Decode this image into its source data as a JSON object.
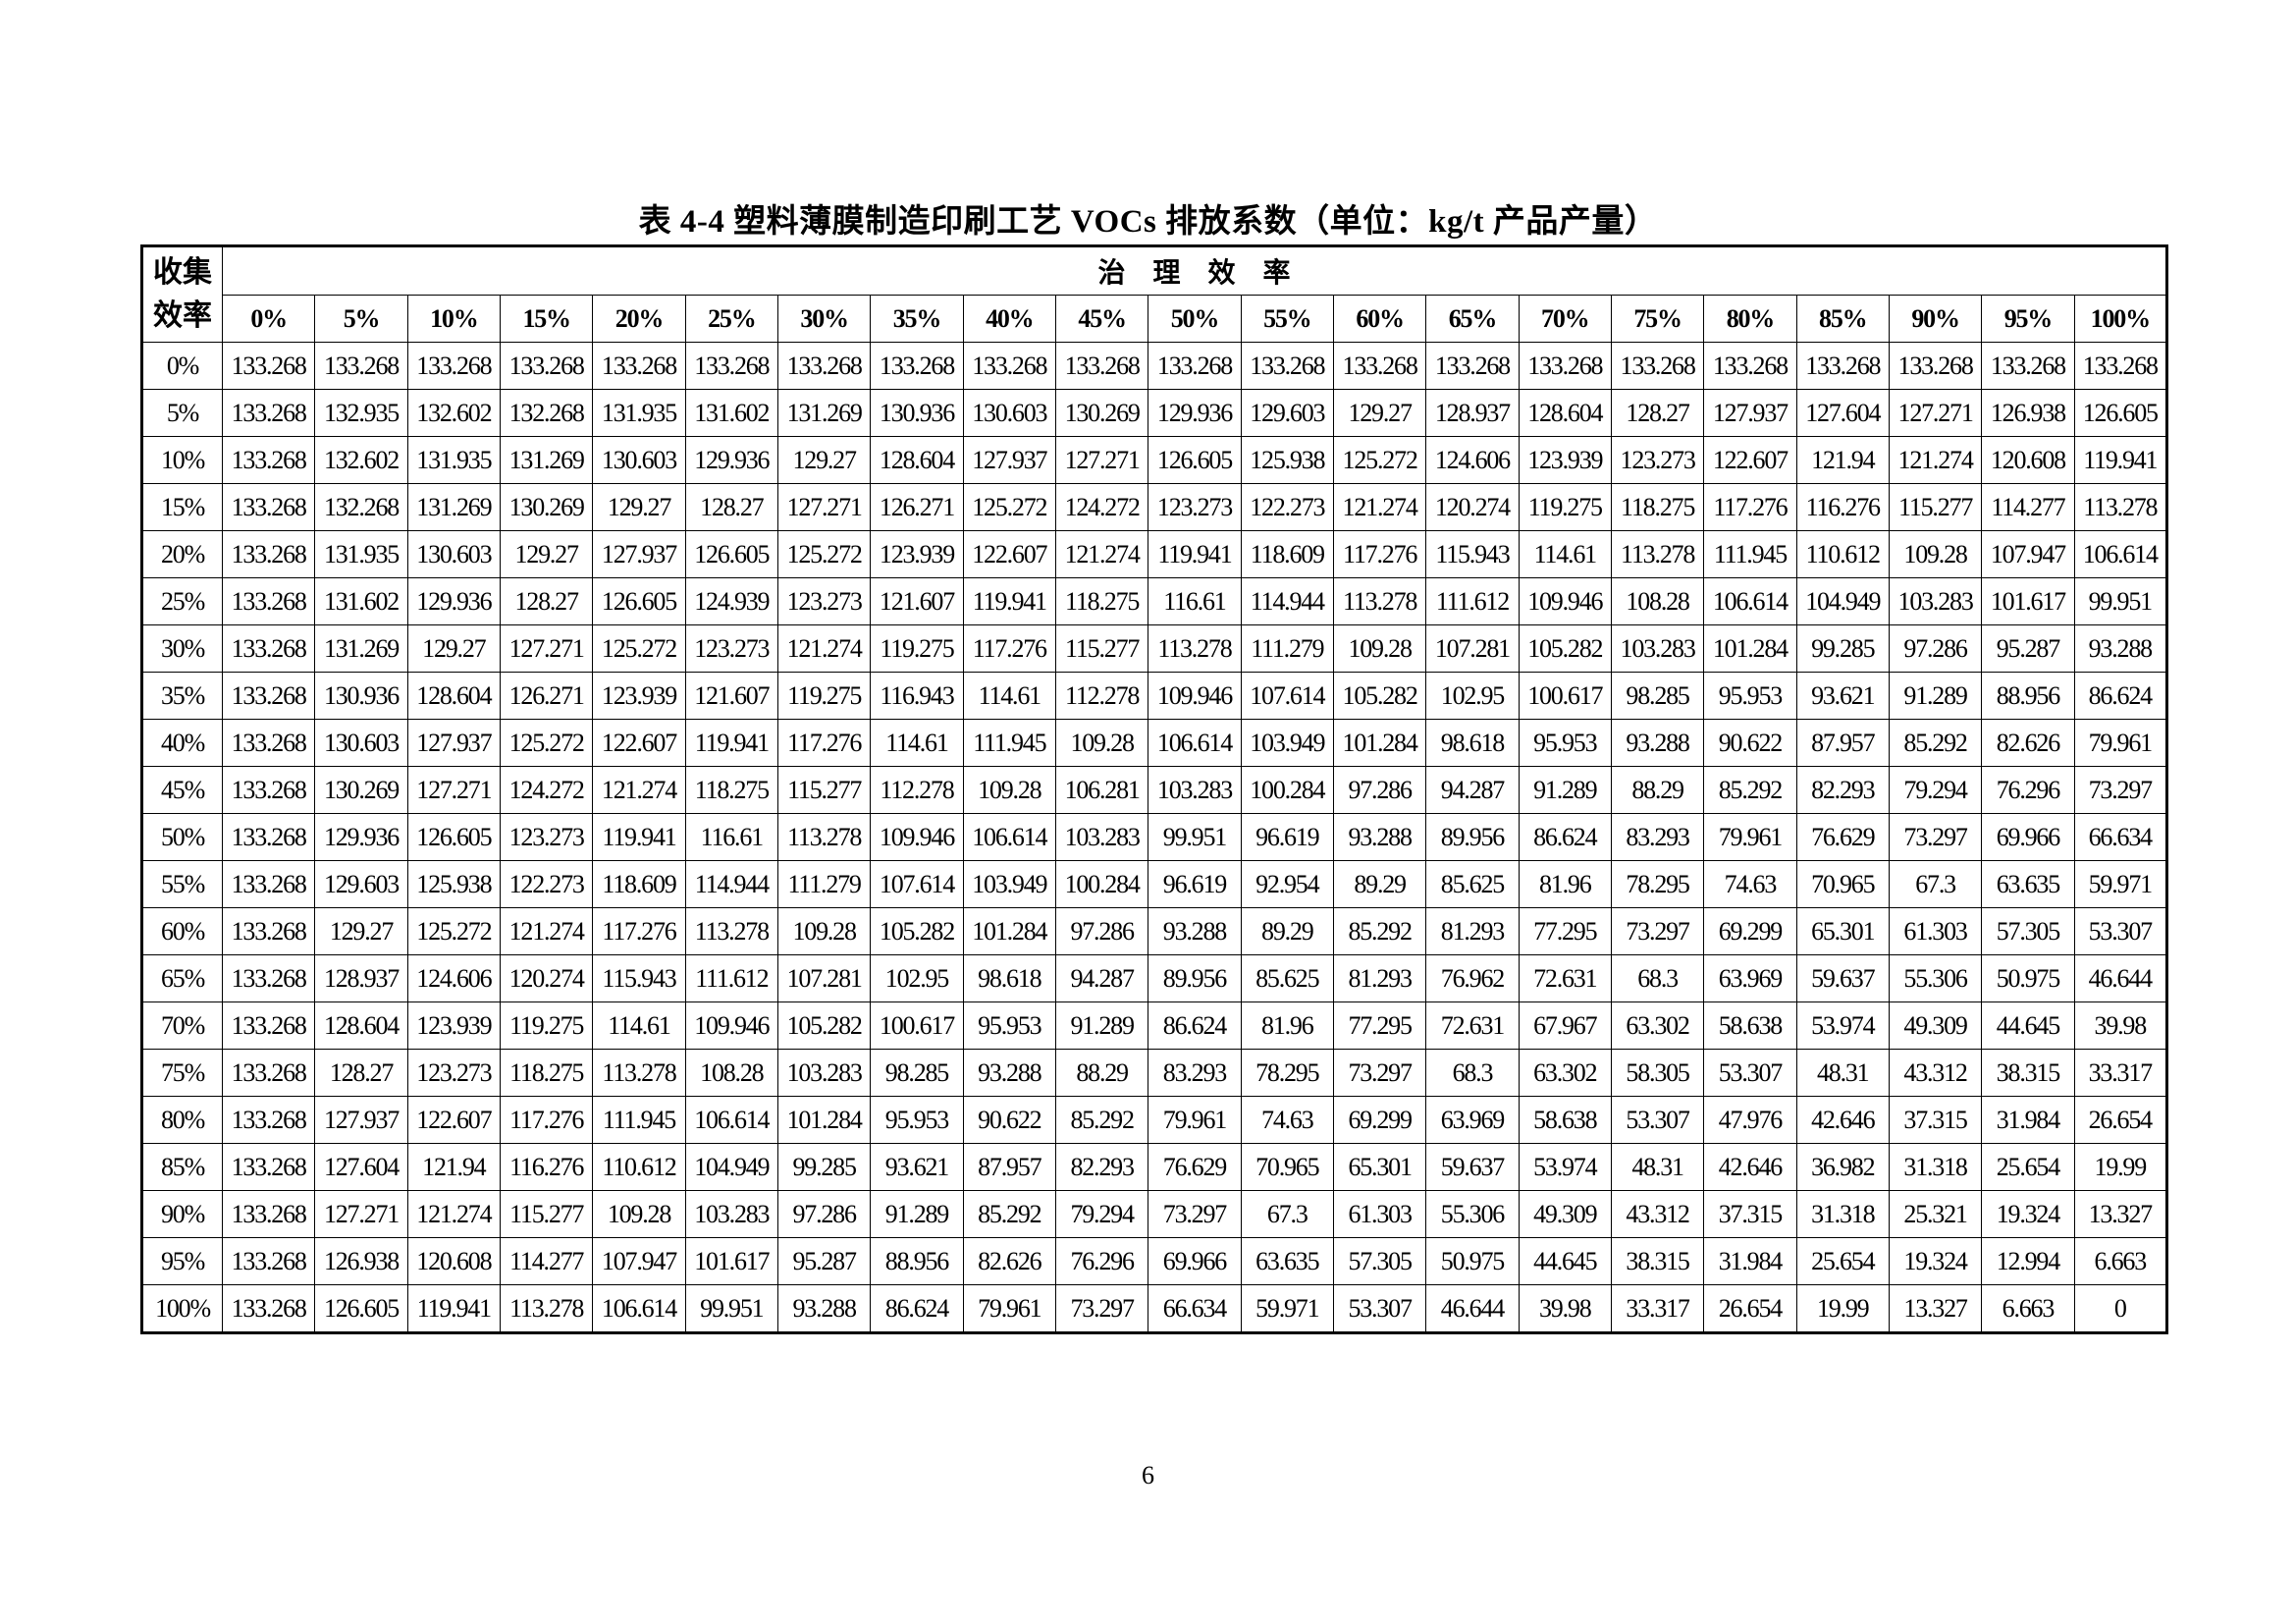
{
  "title": "表 4-4  塑料薄膜制造印刷工艺 VOCs 排放系数（单位：kg/t 产品产量）",
  "table": {
    "row_header": "收集\n效率",
    "column_group_header": "治    理    效    率",
    "columns": [
      "0%",
      "5%",
      "10%",
      "15%",
      "20%",
      "25%",
      "30%",
      "35%",
      "40%",
      "45%",
      "50%",
      "55%",
      "60%",
      "65%",
      "70%",
      "75%",
      "80%",
      "85%",
      "90%",
      "95%",
      "100%"
    ],
    "rows": [
      {
        "label": "0%",
        "values": [
          "133.268",
          "133.268",
          "133.268",
          "133.268",
          "133.268",
          "133.268",
          "133.268",
          "133.268",
          "133.268",
          "133.268",
          "133.268",
          "133.268",
          "133.268",
          "133.268",
          "133.268",
          "133.268",
          "133.268",
          "133.268",
          "133.268",
          "133.268",
          "133.268"
        ]
      },
      {
        "label": "5%",
        "values": [
          "133.268",
          "132.935",
          "132.602",
          "132.268",
          "131.935",
          "131.602",
          "131.269",
          "130.936",
          "130.603",
          "130.269",
          "129.936",
          "129.603",
          "129.27",
          "128.937",
          "128.604",
          "128.27",
          "127.937",
          "127.604",
          "127.271",
          "126.938",
          "126.605"
        ]
      },
      {
        "label": "10%",
        "values": [
          "133.268",
          "132.602",
          "131.935",
          "131.269",
          "130.603",
          "129.936",
          "129.27",
          "128.604",
          "127.937",
          "127.271",
          "126.605",
          "125.938",
          "125.272",
          "124.606",
          "123.939",
          "123.273",
          "122.607",
          "121.94",
          "121.274",
          "120.608",
          "119.941"
        ]
      },
      {
        "label": "15%",
        "values": [
          "133.268",
          "132.268",
          "131.269",
          "130.269",
          "129.27",
          "128.27",
          "127.271",
          "126.271",
          "125.272",
          "124.272",
          "123.273",
          "122.273",
          "121.274",
          "120.274",
          "119.275",
          "118.275",
          "117.276",
          "116.276",
          "115.277",
          "114.277",
          "113.278"
        ]
      },
      {
        "label": "20%",
        "values": [
          "133.268",
          "131.935",
          "130.603",
          "129.27",
          "127.937",
          "126.605",
          "125.272",
          "123.939",
          "122.607",
          "121.274",
          "119.941",
          "118.609",
          "117.276",
          "115.943",
          "114.61",
          "113.278",
          "111.945",
          "110.612",
          "109.28",
          "107.947",
          "106.614"
        ]
      },
      {
        "label": "25%",
        "values": [
          "133.268",
          "131.602",
          "129.936",
          "128.27",
          "126.605",
          "124.939",
          "123.273",
          "121.607",
          "119.941",
          "118.275",
          "116.61",
          "114.944",
          "113.278",
          "111.612",
          "109.946",
          "108.28",
          "106.614",
          "104.949",
          "103.283",
          "101.617",
          "99.951"
        ]
      },
      {
        "label": "30%",
        "values": [
          "133.268",
          "131.269",
          "129.27",
          "127.271",
          "125.272",
          "123.273",
          "121.274",
          "119.275",
          "117.276",
          "115.277",
          "113.278",
          "111.279",
          "109.28",
          "107.281",
          "105.282",
          "103.283",
          "101.284",
          "99.285",
          "97.286",
          "95.287",
          "93.288"
        ]
      },
      {
        "label": "35%",
        "values": [
          "133.268",
          "130.936",
          "128.604",
          "126.271",
          "123.939",
          "121.607",
          "119.275",
          "116.943",
          "114.61",
          "112.278",
          "109.946",
          "107.614",
          "105.282",
          "102.95",
          "100.617",
          "98.285",
          "95.953",
          "93.621",
          "91.289",
          "88.956",
          "86.624"
        ]
      },
      {
        "label": "40%",
        "values": [
          "133.268",
          "130.603",
          "127.937",
          "125.272",
          "122.607",
          "119.941",
          "117.276",
          "114.61",
          "111.945",
          "109.28",
          "106.614",
          "103.949",
          "101.284",
          "98.618",
          "95.953",
          "93.288",
          "90.622",
          "87.957",
          "85.292",
          "82.626",
          "79.961"
        ]
      },
      {
        "label": "45%",
        "values": [
          "133.268",
          "130.269",
          "127.271",
          "124.272",
          "121.274",
          "118.275",
          "115.277",
          "112.278",
          "109.28",
          "106.281",
          "103.283",
          "100.284",
          "97.286",
          "94.287",
          "91.289",
          "88.29",
          "85.292",
          "82.293",
          "79.294",
          "76.296",
          "73.297"
        ]
      },
      {
        "label": "50%",
        "values": [
          "133.268",
          "129.936",
          "126.605",
          "123.273",
          "119.941",
          "116.61",
          "113.278",
          "109.946",
          "106.614",
          "103.283",
          "99.951",
          "96.619",
          "93.288",
          "89.956",
          "86.624",
          "83.293",
          "79.961",
          "76.629",
          "73.297",
          "69.966",
          "66.634"
        ]
      },
      {
        "label": "55%",
        "values": [
          "133.268",
          "129.603",
          "125.938",
          "122.273",
          "118.609",
          "114.944",
          "111.279",
          "107.614",
          "103.949",
          "100.284",
          "96.619",
          "92.954",
          "89.29",
          "85.625",
          "81.96",
          "78.295",
          "74.63",
          "70.965",
          "67.3",
          "63.635",
          "59.971"
        ]
      },
      {
        "label": "60%",
        "values": [
          "133.268",
          "129.27",
          "125.272",
          "121.274",
          "117.276",
          "113.278",
          "109.28",
          "105.282",
          "101.284",
          "97.286",
          "93.288",
          "89.29",
          "85.292",
          "81.293",
          "77.295",
          "73.297",
          "69.299",
          "65.301",
          "61.303",
          "57.305",
          "53.307"
        ]
      },
      {
        "label": "65%",
        "values": [
          "133.268",
          "128.937",
          "124.606",
          "120.274",
          "115.943",
          "111.612",
          "107.281",
          "102.95",
          "98.618",
          "94.287",
          "89.956",
          "85.625",
          "81.293",
          "76.962",
          "72.631",
          "68.3",
          "63.969",
          "59.637",
          "55.306",
          "50.975",
          "46.644"
        ]
      },
      {
        "label": "70%",
        "values": [
          "133.268",
          "128.604",
          "123.939",
          "119.275",
          "114.61",
          "109.946",
          "105.282",
          "100.617",
          "95.953",
          "91.289",
          "86.624",
          "81.96",
          "77.295",
          "72.631",
          "67.967",
          "63.302",
          "58.638",
          "53.974",
          "49.309",
          "44.645",
          "39.98"
        ]
      },
      {
        "label": "75%",
        "values": [
          "133.268",
          "128.27",
          "123.273",
          "118.275",
          "113.278",
          "108.28",
          "103.283",
          "98.285",
          "93.288",
          "88.29",
          "83.293",
          "78.295",
          "73.297",
          "68.3",
          "63.302",
          "58.305",
          "53.307",
          "48.31",
          "43.312",
          "38.315",
          "33.317"
        ]
      },
      {
        "label": "80%",
        "values": [
          "133.268",
          "127.937",
          "122.607",
          "117.276",
          "111.945",
          "106.614",
          "101.284",
          "95.953",
          "90.622",
          "85.292",
          "79.961",
          "74.63",
          "69.299",
          "63.969",
          "58.638",
          "53.307",
          "47.976",
          "42.646",
          "37.315",
          "31.984",
          "26.654"
        ]
      },
      {
        "label": "85%",
        "values": [
          "133.268",
          "127.604",
          "121.94",
          "116.276",
          "110.612",
          "104.949",
          "99.285",
          "93.621",
          "87.957",
          "82.293",
          "76.629",
          "70.965",
          "65.301",
          "59.637",
          "53.974",
          "48.31",
          "42.646",
          "36.982",
          "31.318",
          "25.654",
          "19.99"
        ]
      },
      {
        "label": "90%",
        "values": [
          "133.268",
          "127.271",
          "121.274",
          "115.277",
          "109.28",
          "103.283",
          "97.286",
          "91.289",
          "85.292",
          "79.294",
          "73.297",
          "67.3",
          "61.303",
          "55.306",
          "49.309",
          "43.312",
          "37.315",
          "31.318",
          "25.321",
          "19.324",
          "13.327"
        ]
      },
      {
        "label": "95%",
        "values": [
          "133.268",
          "126.938",
          "120.608",
          "114.277",
          "107.947",
          "101.617",
          "95.287",
          "88.956",
          "82.626",
          "76.296",
          "69.966",
          "63.635",
          "57.305",
          "50.975",
          "44.645",
          "38.315",
          "31.984",
          "25.654",
          "19.324",
          "12.994",
          "6.663"
        ]
      },
      {
        "label": "100%",
        "values": [
          "133.268",
          "126.605",
          "119.941",
          "113.278",
          "106.614",
          "99.951",
          "93.288",
          "86.624",
          "79.961",
          "73.297",
          "66.634",
          "59.971",
          "53.307",
          "46.644",
          "39.98",
          "33.317",
          "26.654",
          "19.99",
          "13.327",
          "6.663",
          "0"
        ]
      }
    ]
  },
  "page_number": "6"
}
